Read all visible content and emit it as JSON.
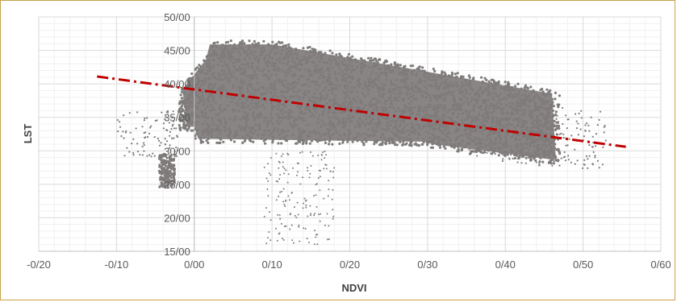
{
  "chart_data": {
    "type": "scatter",
    "xlabel": "NDVI",
    "ylabel": "LST",
    "xlim": [
      -0.2,
      0.6
    ],
    "ylim": [
      15,
      50
    ],
    "x_ticks": [
      -0.2,
      -0.1,
      0.0,
      0.1,
      0.2,
      0.3,
      0.4,
      0.5,
      0.6
    ],
    "y_ticks": [
      15,
      20,
      25,
      30,
      35,
      40,
      45,
      50
    ],
    "x_tick_labels": [
      "-0/20",
      "-0/10",
      "0/00",
      "0/10",
      "0/20",
      "0/30",
      "0/40",
      "0/50",
      "0/60"
    ],
    "y_tick_labels": [
      "15/00",
      "20/00",
      "25/00",
      "30/00",
      "35/00",
      "40/00",
      "45/00",
      "50/00"
    ],
    "grid": true,
    "legend": "none",
    "series": [
      {
        "marker_color": "#7f7b7b",
        "clusters": [
          {
            "x_range": [
              -0.02,
              0.13
            ],
            "y_range": [
              31.5,
              46.5
            ]
          },
          {
            "x_range": [
              0.1,
              0.3
            ],
            "y_range": [
              30.5,
              44.5
            ]
          },
          {
            "x_range": [
              0.3,
              0.47
            ],
            "y_range": [
              28.0,
              39.5
            ]
          },
          {
            "x_range": [
              -0.045,
              -0.025
            ],
            "y_range": [
              24.5,
              29.5
            ]
          },
          {
            "x_range": [
              0.08,
              0.18
            ],
            "y_range": [
              15.5,
              29.5
            ]
          }
        ]
      }
    ],
    "trendline": {
      "type": "linear",
      "color": "#c00000",
      "style": "dash-dot",
      "x_start": -0.125,
      "y_start": 41.1,
      "x_end": 0.555,
      "y_end": 30.6
    }
  }
}
